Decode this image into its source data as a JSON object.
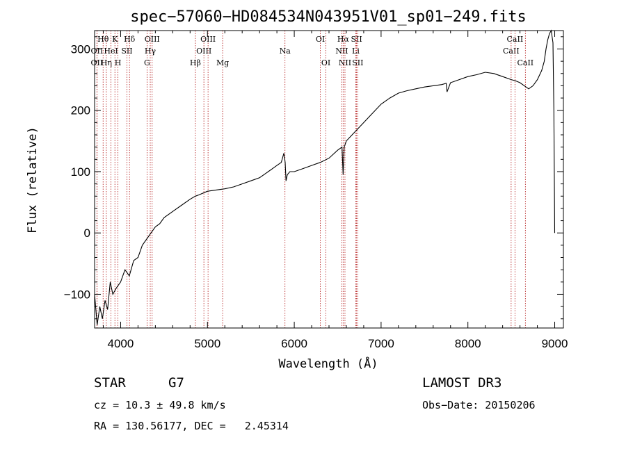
{
  "chart_data": {
    "type": "line",
    "title": "spec−57060−HD084534N043951V01_sp01−249.fits",
    "xlabel": "Wavelength (Å)",
    "ylabel": "Flux (relative)",
    "xlim": [
      3700,
      9100
    ],
    "ylim": [
      -155,
      330
    ],
    "xticks": [
      4000,
      5000,
      6000,
      7000,
      8000,
      9000
    ],
    "yticks": [
      -100,
      0,
      100,
      200,
      300
    ],
    "ytick_labels": [
      "−100",
      "0",
      "100",
      "200",
      "300"
    ],
    "series": [
      {
        "name": "flux",
        "x": [
          3700,
          3730,
          3760,
          3790,
          3820,
          3850,
          3880,
          3910,
          3950,
          4000,
          4050,
          4100,
          4150,
          4200,
          4250,
          4300,
          4350,
          4400,
          4450,
          4500,
          4600,
          4700,
          4800,
          4860,
          4900,
          5000,
          5100,
          5200,
          5300,
          5400,
          5500,
          5600,
          5700,
          5750,
          5800,
          5850,
          5880,
          5895,
          5905,
          5920,
          5950,
          6000,
          6100,
          6200,
          6300,
          6400,
          6500,
          6550,
          6563,
          6575,
          6600,
          6700,
          6800,
          6900,
          7000,
          7100,
          7200,
          7300,
          7400,
          7500,
          7600,
          7700,
          7750,
          7760,
          7800,
          7900,
          8000,
          8100,
          8200,
          8300,
          8400,
          8500,
          8550,
          8600,
          8650,
          8700,
          8750,
          8800,
          8850,
          8880,
          8900,
          8920,
          8940,
          8960,
          8980,
          8990,
          9000
        ],
        "y": [
          -100,
          -150,
          -120,
          -140,
          -110,
          -125,
          -80,
          -100,
          -90,
          -80,
          -60,
          -70,
          -45,
          -40,
          -20,
          -10,
          0,
          10,
          15,
          25,
          35,
          45,
          55,
          60,
          62,
          68,
          70,
          72,
          75,
          80,
          85,
          90,
          100,
          105,
          110,
          115,
          130,
          115,
          85,
          95,
          100,
          100,
          105,
          110,
          115,
          122,
          135,
          140,
          95,
          140,
          150,
          165,
          180,
          195,
          210,
          220,
          228,
          232,
          235,
          238,
          240,
          242,
          244,
          230,
          245,
          250,
          255,
          258,
          262,
          260,
          255,
          250,
          248,
          245,
          240,
          235,
          240,
          250,
          265,
          280,
          300,
          315,
          325,
          330,
          310,
          200,
          0
        ]
      }
    ],
    "lines": [
      {
        "label": "Hθ",
        "x": 3798,
        "row": 0
      },
      {
        "label": "OII",
        "x": 3727,
        "row": 1
      },
      {
        "label": "OII",
        "x": 3727,
        "row": 2
      },
      {
        "label": "Hη",
        "x": 3835,
        "row": 2
      },
      {
        "label": "HeI",
        "x": 3889,
        "row": 1
      },
      {
        "label": "K",
        "x": 3934,
        "row": 0
      },
      {
        "label": "H",
        "x": 3969,
        "row": 2
      },
      {
        "label": "SII",
        "x": 4072,
        "row": 1
      },
      {
        "label": "Hδ",
        "x": 4102,
        "row": 0
      },
      {
        "label": "OIII",
        "x": 4363,
        "row": 0
      },
      {
        "label": "Hγ",
        "x": 4341,
        "row": 1
      },
      {
        "label": "G",
        "x": 4304,
        "row": 2
      },
      {
        "label": "Hβ",
        "x": 4861,
        "row": 2
      },
      {
        "label": "OIII",
        "x": 4959,
        "row": 1
      },
      {
        "label": "OIII",
        "x": 5007,
        "row": 0
      },
      {
        "label": "Mg",
        "x": 5175,
        "row": 2
      },
      {
        "label": "Na",
        "x": 5893,
        "row": 1
      },
      {
        "label": "OI",
        "x": 6300,
        "row": 0
      },
      {
        "label": "OI",
        "x": 6364,
        "row": 2
      },
      {
        "label": "NII",
        "x": 6548,
        "row": 1
      },
      {
        "label": "Hα",
        "x": 6563,
        "row": 0
      },
      {
        "label": "NII",
        "x": 6584,
        "row": 2
      },
      {
        "label": "SII",
        "x": 6717,
        "row": 0
      },
      {
        "label": "Li",
        "x": 6708,
        "row": 1
      },
      {
        "label": "SII",
        "x": 6731,
        "row": 2
      },
      {
        "label": "CaII",
        "x": 8498,
        "row": 1
      },
      {
        "label": "CaII",
        "x": 8542,
        "row": 0
      },
      {
        "label": "CaII",
        "x": 8662,
        "row": 2
      }
    ]
  },
  "info": {
    "obj_class": "STAR",
    "subclass": "G7",
    "survey": "LAMOST DR3",
    "cz": "cz = 10.3 ± 49.8 km/s",
    "obs_date": "Obs−Date: 20150206",
    "radec": "RA = 130.56177, DEC =   2.45314"
  },
  "colors": {
    "axis": "#000000",
    "line_marker": "#b01010",
    "spectrum": "#000000"
  }
}
